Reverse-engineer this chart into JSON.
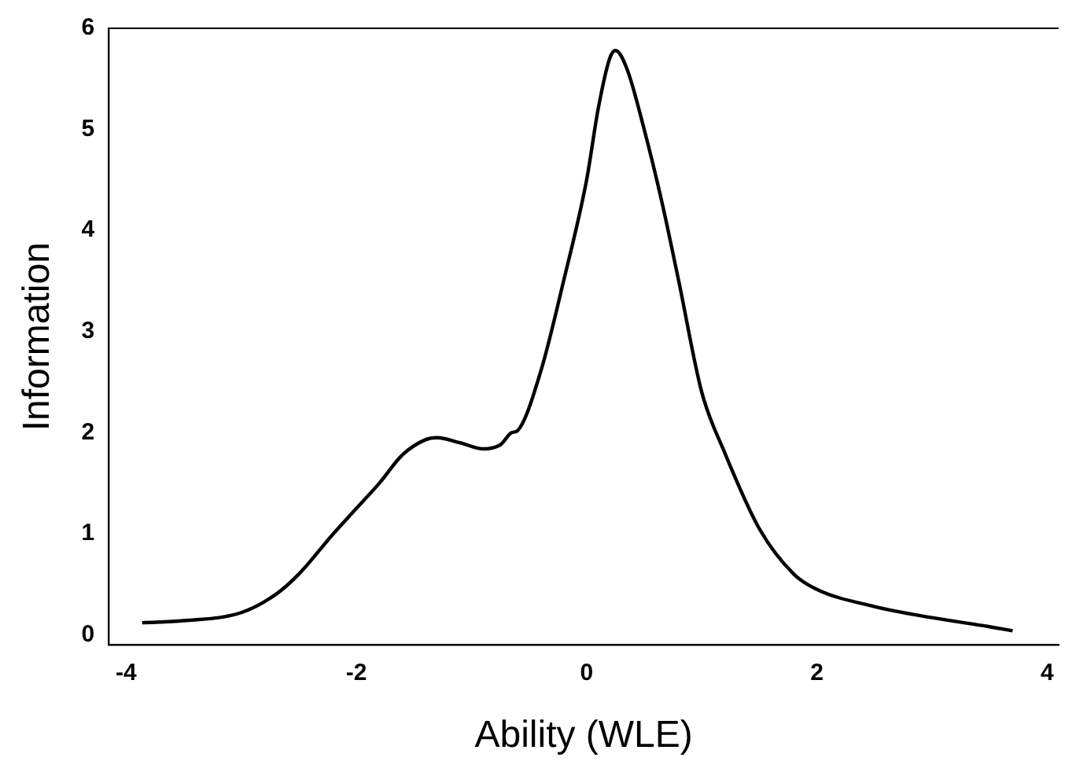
{
  "chart_data": {
    "type": "line",
    "xlabel": "Ability (WLE)",
    "ylabel": "Information",
    "xlim": [
      -4.15,
      4.1
    ],
    "xticks": [
      -4,
      -2,
      0,
      2,
      4
    ],
    "ylim": [
      -0.1,
      6
    ],
    "yticks": [
      0,
      1,
      2,
      3,
      4,
      5,
      6
    ],
    "grid": false,
    "legend": false,
    "marker": "none",
    "line_style": "solid",
    "series": [
      {
        "color": "#000000",
        "x": [
          -3.86,
          -3.5,
          -3.0,
          -2.7,
          -2.5,
          -2.2,
          -2.0,
          -1.8,
          -1.6,
          -1.4,
          -1.3,
          -1.1,
          -0.9,
          -0.75,
          -0.65,
          -0.6,
          -0.4,
          -0.2,
          0,
          0.1,
          0.2,
          0.25,
          0.35,
          0.5,
          0.65,
          0.8,
          1.0,
          1.2,
          1.5,
          1.8,
          2.0,
          2.5,
          3.0,
          3.5,
          3.7
        ],
        "values": [
          0.12,
          0.14,
          0.22,
          0.4,
          0.6,
          1.0,
          1.25,
          1.5,
          1.78,
          1.93,
          1.95,
          1.9,
          1.84,
          1.88,
          2.0,
          2.02,
          2.6,
          3.5,
          4.5,
          5.2,
          5.7,
          5.78,
          5.6,
          5.0,
          4.3,
          3.5,
          2.4,
          1.8,
          1.05,
          0.6,
          0.45,
          0.28,
          0.17,
          0.08,
          0.04
        ]
      }
    ]
  }
}
